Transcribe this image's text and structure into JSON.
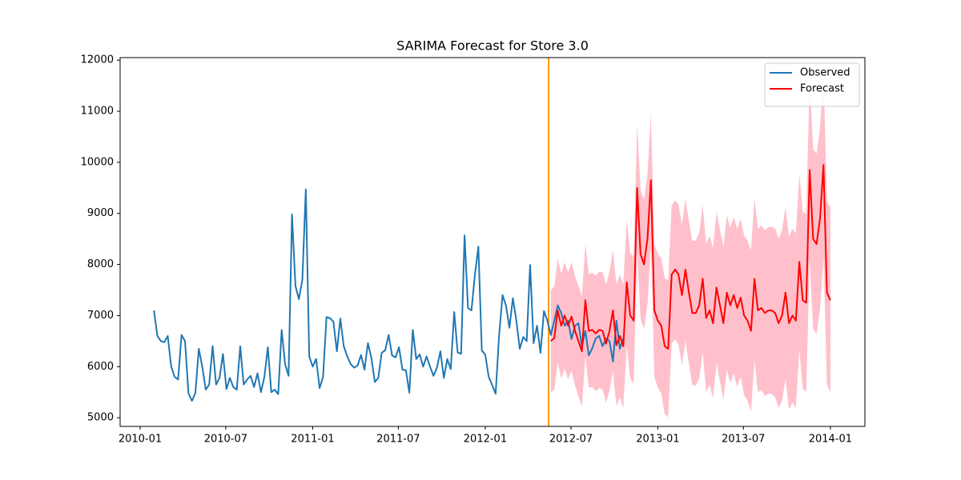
{
  "chart_data": {
    "type": "line",
    "title": "SARIMA Forecast for Store 3.0",
    "xlim": [
      2009.884,
      2014.2
    ],
    "ylim": [
      4830,
      12050
    ],
    "xticks": [
      {
        "value": 2010.0,
        "label": "2010-01"
      },
      {
        "value": 2010.496,
        "label": "2010-07"
      },
      {
        "value": 2011.0,
        "label": "2011-01"
      },
      {
        "value": 2011.496,
        "label": "2011-07"
      },
      {
        "value": 2012.0,
        "label": "2012-01"
      },
      {
        "value": 2012.497,
        "label": "2012-07"
      },
      {
        "value": 2013.0,
        "label": "2013-01"
      },
      {
        "value": 2013.496,
        "label": "2013-07"
      },
      {
        "value": 2014.0,
        "label": "2014-01"
      }
    ],
    "yticks": [
      5000,
      6000,
      7000,
      8000,
      9000,
      10000,
      11000,
      12000
    ],
    "legend": "upper right",
    "vline": {
      "x": 2012.367,
      "color": "#ff9900"
    },
    "series": [
      {
        "name": "Observed",
        "color": "#1f77b4",
        "x": [
          2010.08,
          2010.1,
          2010.12,
          2010.14,
          2010.16,
          2010.18,
          2010.2,
          2010.22,
          2010.24,
          2010.26,
          2010.28,
          2010.3,
          2010.32,
          2010.34,
          2010.36,
          2010.38,
          2010.4,
          2010.42,
          2010.44,
          2010.46,
          2010.48,
          2010.5,
          2010.52,
          2010.54,
          2010.56,
          2010.58,
          2010.6,
          2010.62,
          2010.64,
          2010.66,
          2010.68,
          2010.7,
          2010.72,
          2010.74,
          2010.76,
          2010.78,
          2010.8,
          2010.82,
          2010.84,
          2010.86,
          2010.88,
          2010.9,
          2010.92,
          2010.94,
          2010.96,
          2010.98,
          2011,
          2011.02,
          2011.04,
          2011.06,
          2011.08,
          2011.1,
          2011.12,
          2011.14,
          2011.16,
          2011.18,
          2011.2,
          2011.22,
          2011.24,
          2011.26,
          2011.28,
          2011.3,
          2011.32,
          2011.34,
          2011.36,
          2011.38,
          2011.4,
          2011.42,
          2011.44,
          2011.46,
          2011.48,
          2011.5,
          2011.52,
          2011.54,
          2011.56,
          2011.58,
          2011.6,
          2011.62,
          2011.64,
          2011.66,
          2011.68,
          2011.7,
          2011.72,
          2011.74,
          2011.76,
          2011.78,
          2011.8,
          2011.82,
          2011.84,
          2011.86,
          2011.88,
          2011.9,
          2011.92,
          2011.94,
          2011.96,
          2011.98,
          2012,
          2012.02,
          2012.04,
          2012.06,
          2012.08,
          2012.1,
          2012.12,
          2012.14,
          2012.16,
          2012.18,
          2012.2,
          2012.22,
          2012.24,
          2012.26,
          2012.28,
          2012.3,
          2012.32,
          2012.34,
          2012.36,
          2012.38,
          2012.4,
          2012.42,
          2012.44,
          2012.46,
          2012.48,
          2012.5,
          2012.52,
          2012.54,
          2012.56,
          2012.58,
          2012.6,
          2012.62,
          2012.64,
          2012.66,
          2012.68,
          2012.7,
          2012.72,
          2012.74,
          2012.76,
          2012.78,
          2012.8
        ],
        "values": [
          7100,
          6600,
          6500,
          6480,
          6600,
          6000,
          5800,
          5750,
          6620,
          6500,
          5480,
          5330,
          5480,
          6350,
          6000,
          5550,
          5650,
          6400,
          5650,
          5780,
          6250,
          5560,
          5780,
          5600,
          5550,
          6400,
          5650,
          5750,
          5820,
          5600,
          5870,
          5500,
          5800,
          6380,
          5500,
          5550,
          5460,
          6720,
          6050,
          5820,
          8980,
          7580,
          7320,
          7700,
          9470,
          6200,
          6000,
          6150,
          5580,
          5800,
          6970,
          6950,
          6880,
          6300,
          6940,
          6400,
          6200,
          6050,
          5980,
          6020,
          6230,
          5940,
          6460,
          6170,
          5700,
          5780,
          6270,
          6320,
          6620,
          6220,
          6180,
          6380,
          5940,
          5930,
          5490,
          6720,
          6150,
          6240,
          6000,
          6200,
          6000,
          5820,
          5980,
          6300,
          5780,
          6150,
          5950,
          7070,
          6280,
          6250,
          8570,
          7150,
          7100,
          7800,
          8350,
          6320,
          6230,
          5800,
          5640,
          5470,
          6600,
          7400,
          7200,
          6760,
          7340,
          6900,
          6350,
          6580,
          6500,
          7990,
          6460,
          6800,
          6270,
          7090,
          6900,
          6620,
          6900,
          7200,
          7050,
          6800,
          6900,
          6540,
          6800,
          6850,
          6400,
          6700,
          6220,
          6360,
          6550,
          6600,
          6400,
          6550,
          6500,
          6100,
          6900,
          6350,
          6550
        ]
      },
      {
        "name": "Forecast",
        "color": "#ff0000",
        "band_color": "#ffc0cb",
        "x": [
          2012.38,
          2012.4,
          2012.42,
          2012.44,
          2012.46,
          2012.48,
          2012.5,
          2012.52,
          2012.54,
          2012.56,
          2012.58,
          2012.6,
          2012.62,
          2012.64,
          2012.66,
          2012.68,
          2012.7,
          2012.72,
          2012.74,
          2012.76,
          2012.78,
          2012.8,
          2012.82,
          2012.84,
          2012.86,
          2012.88,
          2012.9,
          2012.92,
          2012.94,
          2012.96,
          2012.98,
          2013,
          2013.02,
          2013.04,
          2013.06,
          2013.08,
          2013.1,
          2013.12,
          2013.14,
          2013.16,
          2013.18,
          2013.2,
          2013.22,
          2013.24,
          2013.26,
          2013.28,
          2013.3,
          2013.32,
          2013.34,
          2013.36,
          2013.38,
          2013.4,
          2013.42,
          2013.44,
          2013.46,
          2013.48,
          2013.5,
          2013.52,
          2013.54,
          2013.56,
          2013.58,
          2013.6,
          2013.62,
          2013.64,
          2013.66,
          2013.68,
          2013.7,
          2013.72,
          2013.74,
          2013.76,
          2013.78,
          2013.8,
          2013.82,
          2013.84,
          2013.86,
          2013.88,
          2013.9,
          2013.92,
          2013.94,
          2013.96,
          2013.98,
          2014
        ],
        "values": [
          6500,
          6560,
          7100,
          6800,
          7000,
          6800,
          6980,
          6700,
          6500,
          6300,
          7300,
          6700,
          6720,
          6650,
          6720,
          6700,
          6450,
          6700,
          7100,
          6420,
          6600,
          6400,
          7650,
          7000,
          6900,
          9500,
          8200,
          8000,
          8500,
          9650,
          7100,
          6900,
          6800,
          6400,
          6350,
          7800,
          7900,
          7800,
          7400,
          7900,
          7450,
          7050,
          7050,
          7200,
          7720,
          6950,
          7100,
          6850,
          7550,
          7200,
          6850,
          7450,
          7200,
          7400,
          7150,
          7350,
          7000,
          6900,
          6700,
          7720,
          7100,
          7150,
          7050,
          7100,
          7100,
          7050,
          6850,
          7000,
          7450,
          6850,
          7000,
          6900,
          8050,
          7300,
          7250,
          9850,
          8500,
          8400,
          8900,
          9950,
          7450,
          7300
        ],
        "lower": [
          5500,
          5550,
          6080,
          5770,
          5960,
          5750,
          5920,
          5630,
          5420,
          5210,
          6200,
          5590,
          5600,
          5520,
          5580,
          5550,
          5290,
          5530,
          5920,
          5230,
          5400,
          5190,
          6430,
          5770,
          5660,
          8250,
          6940,
          6730,
          7220,
          8360,
          5800,
          5590,
          5480,
          5070,
          5010,
          6450,
          6540,
          6430,
          6020,
          6510,
          6050,
          5640,
          5630,
          5770,
          6280,
          5500,
          5640,
          5380,
          6070,
          5710,
          5350,
          5940,
          5680,
          5870,
          5610,
          5800,
          5440,
          5330,
          5120,
          6130,
          5500,
          5540,
          5430,
          5470,
          5460,
          5400,
          5190,
          5330,
          5770,
          5160,
          5300,
          5190,
          6330,
          5570,
          5510,
          8100,
          6740,
          6630,
          7120,
          8160,
          5650,
          5490
        ],
        "upper": [
          7500,
          7570,
          8120,
          7830,
          8040,
          7850,
          8040,
          7770,
          7580,
          7390,
          8400,
          7810,
          7840,
          7780,
          7860,
          7850,
          7610,
          7870,
          8280,
          7610,
          7800,
          7610,
          8870,
          8230,
          8140,
          10750,
          9460,
          9270,
          9780,
          10940,
          8400,
          8210,
          8120,
          7730,
          7690,
          9150,
          9260,
          9170,
          8780,
          9290,
          8850,
          8460,
          8470,
          8630,
          9160,
          8400,
          8560,
          8320,
          9030,
          8690,
          8350,
          8960,
          8720,
          8930,
          8690,
          8900,
          8560,
          8470,
          8280,
          9310,
          8700,
          8760,
          8670,
          8730,
          8740,
          8700,
          8510,
          8670,
          9130,
          8540,
          8700,
          8610,
          9770,
          9030,
          8990,
          11600,
          10260,
          10170,
          10680,
          11740,
          9250,
          9110
        ]
      }
    ]
  }
}
